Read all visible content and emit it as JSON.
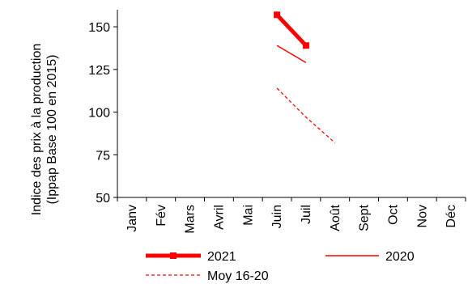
{
  "chart_data": {
    "type": "line",
    "ylabel_line1": "Indice des prix à la production",
    "ylabel_line2": "(Ippap Base 100 en 2015)",
    "categories": [
      "Janv",
      "Fév",
      "Mars",
      "Avril",
      "Mai",
      "Juin",
      "Juil",
      "Août",
      "Sept",
      "Oct",
      "Nov",
      "Déc"
    ],
    "ylim": [
      50,
      160
    ],
    "yticks": [
      50,
      75,
      100,
      125,
      150
    ],
    "grid": false,
    "legend_position": "bottom",
    "series": [
      {
        "name": "2021",
        "values": [
          null,
          null,
          null,
          null,
          null,
          157,
          139,
          null,
          null,
          null,
          null,
          null
        ],
        "color": "#ff0000",
        "style": "thick-markers"
      },
      {
        "name": "2020",
        "values": [
          null,
          null,
          null,
          null,
          null,
          139,
          129,
          null,
          null,
          null,
          null,
          null
        ],
        "color": "#ff0000",
        "style": "solid"
      },
      {
        "name": "Moy 16-20",
        "values": [
          null,
          null,
          null,
          null,
          null,
          114,
          97,
          82,
          null,
          null,
          null,
          null
        ],
        "color": "#ff0000",
        "style": "dashed"
      }
    ]
  }
}
